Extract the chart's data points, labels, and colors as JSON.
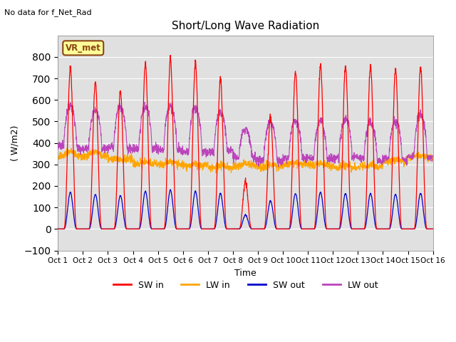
{
  "title": "Short/Long Wave Radiation",
  "xlabel": "Time",
  "ylabel": "( W/m2)",
  "ylim": [
    -100,
    900
  ],
  "yticks": [
    -100,
    0,
    100,
    200,
    300,
    400,
    500,
    600,
    700,
    800
  ],
  "xlim": [
    0,
    15
  ],
  "xtick_labels": [
    "Oct 1",
    "Oct 2",
    "Oct 3",
    "Oct 4",
    "Oct 5",
    "Oct 6",
    "Oct 7",
    "Oct 8",
    "Oct 9",
    "Oct 10",
    "Oct 11",
    "Oct 12",
    "Oct 13",
    "Oct 14",
    "Oct 15",
    "Oct 16"
  ],
  "no_data_text": "No data for f_Net_Rad",
  "dataset_label_text": "VR_met",
  "colors": {
    "SW_in": "#ff0000",
    "LW_in": "#ffa500",
    "SW_out": "#0000cc",
    "LW_out": "#bb44bb"
  },
  "legend_labels": [
    "SW in",
    "LW in",
    "SW out",
    "LW out"
  ],
  "background_color": "#e0e0e0",
  "grid_color": "#ffffff",
  "SW_in_peaks": [
    750,
    680,
    640,
    770,
    790,
    775,
    700,
    220,
    520,
    735,
    760,
    760,
    760,
    740,
    750
  ],
  "LW_out_day": [
    580,
    555,
    570,
    570,
    575,
    570,
    545,
    460,
    500,
    505,
    505,
    505,
    505,
    500,
    545
  ],
  "LW_out_night": [
    385,
    375,
    375,
    375,
    370,
    360,
    355,
    330,
    320,
    330,
    330,
    330,
    330,
    330,
    340
  ],
  "LW_in_day": [
    360,
    360,
    325,
    310,
    310,
    300,
    295,
    305,
    300,
    305,
    305,
    295,
    295,
    320,
    340
  ],
  "LW_in_night": [
    340,
    340,
    325,
    305,
    300,
    295,
    285,
    295,
    290,
    300,
    295,
    285,
    290,
    315,
    335
  ],
  "SW_out_peaks": [
    170,
    160,
    155,
    175,
    180,
    175,
    165,
    65,
    130,
    165,
    170,
    165,
    165,
    160,
    165
  ],
  "n_days": 15,
  "pts_per_day": 144
}
